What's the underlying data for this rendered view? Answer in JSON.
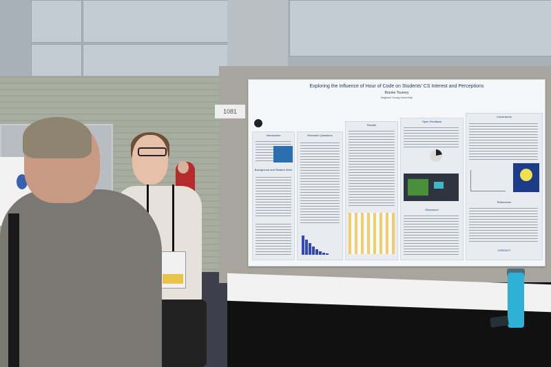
{
  "scene": {
    "description_label": "Conference poster session photo",
    "board_number": "1081"
  },
  "poster": {
    "title": "Exploring the Influence of Hour of Code on Students' CS Interest and Perceptions",
    "author": "Brooke Tourney",
    "affiliation": "Brigham Young University",
    "sections": {
      "intro": "Introduction",
      "background": "Background and Related Work",
      "methods": "Research Questions",
      "results": "Results",
      "discussion": "Discussion",
      "qualitative": "Open Feedback",
      "conclusions": "Conclusions",
      "references": "References",
      "contact": "CONTACT"
    }
  },
  "colors": {
    "poster_bg": "#f4f6f8",
    "bar_blue": "#3248b8",
    "bottle": "#2fb0d6"
  }
}
